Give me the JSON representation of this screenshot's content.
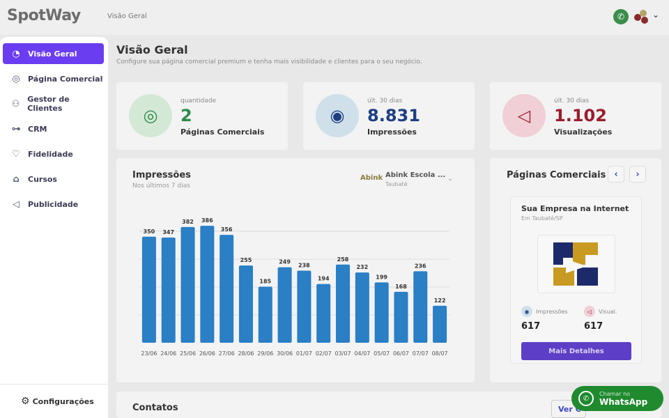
{
  "app": {
    "logo_text": "SpotWay",
    "breadcrumb": "Visão Geral"
  },
  "sidebar": {
    "items": [
      {
        "label": "Visão Geral",
        "icon": "dashboard-icon",
        "active": true
      },
      {
        "label": "Página Comercial",
        "icon": "target-icon",
        "active": false
      },
      {
        "label": "Gestor de Clientes",
        "icon": "users-icon",
        "active": false
      },
      {
        "label": "CRM",
        "icon": "flow-icon",
        "active": false
      },
      {
        "label": "Fidelidade",
        "icon": "user-heart-icon",
        "active": false
      },
      {
        "label": "Cursos",
        "icon": "graduation-cap-icon",
        "active": false
      },
      {
        "label": "Publicidade",
        "icon": "megaphone-icon",
        "active": false
      }
    ],
    "settings_label": "Configurações"
  },
  "header": {
    "title": "Visão Geral",
    "subtitle": "Configure sua página comercial premium e tenha mais visibilidade e clientes para o seu negócio."
  },
  "stats": [
    {
      "label": "quantidade",
      "value": "2",
      "name": "Páginas Comerciais",
      "color": "#2f8a4a",
      "circle": "#d4e8d6",
      "icon": "target-icon"
    },
    {
      "label": "últ. 30 dias",
      "value": "8.831",
      "name": "Impressões",
      "color": "#1d3f82",
      "circle": "#cfe0ea",
      "icon": "eye-icon"
    },
    {
      "label": "últ. 30 dias",
      "value": "1.102",
      "name": "Visualizações",
      "color": "#9a1c2c",
      "circle": "#f0cfd6",
      "icon": "megaphone-icon"
    }
  ],
  "impressions": {
    "title": "Impressões",
    "subtitle": "Nos últimos 7 dias",
    "select": {
      "logo": "Abink",
      "name": "Abink Escola ...",
      "sub": "Taubaté"
    }
  },
  "chart_data": {
    "type": "bar",
    "categories": [
      "23/06",
      "24/06",
      "25/06",
      "26/06",
      "27/06",
      "28/06",
      "29/06",
      "30/06",
      "01/07",
      "02/07",
      "03/07",
      "04/07",
      "05/07",
      "06/07",
      "07/07",
      "08/07"
    ],
    "values": [
      350,
      347,
      382,
      386,
      356,
      255,
      185,
      249,
      238,
      194,
      258,
      232,
      199,
      168,
      236,
      122
    ],
    "ylim": [
      0,
      400
    ],
    "color": "#2a7fc5",
    "grid": true
  },
  "pages_panel": {
    "title": "Páginas Comerciais",
    "card": {
      "title": "Sua Empresa na Internet",
      "location": "Em Taubaté/SP",
      "impressions_label": "Impressões",
      "impressions_value": "617",
      "views_label": "Visual.",
      "views_value": "617",
      "details_button": "Mais Detalhes"
    }
  },
  "contacts": {
    "title": "Contatos",
    "button": "Ver C"
  },
  "whatsapp": {
    "top": "Chamar no",
    "bottom": "WhatsApp"
  }
}
